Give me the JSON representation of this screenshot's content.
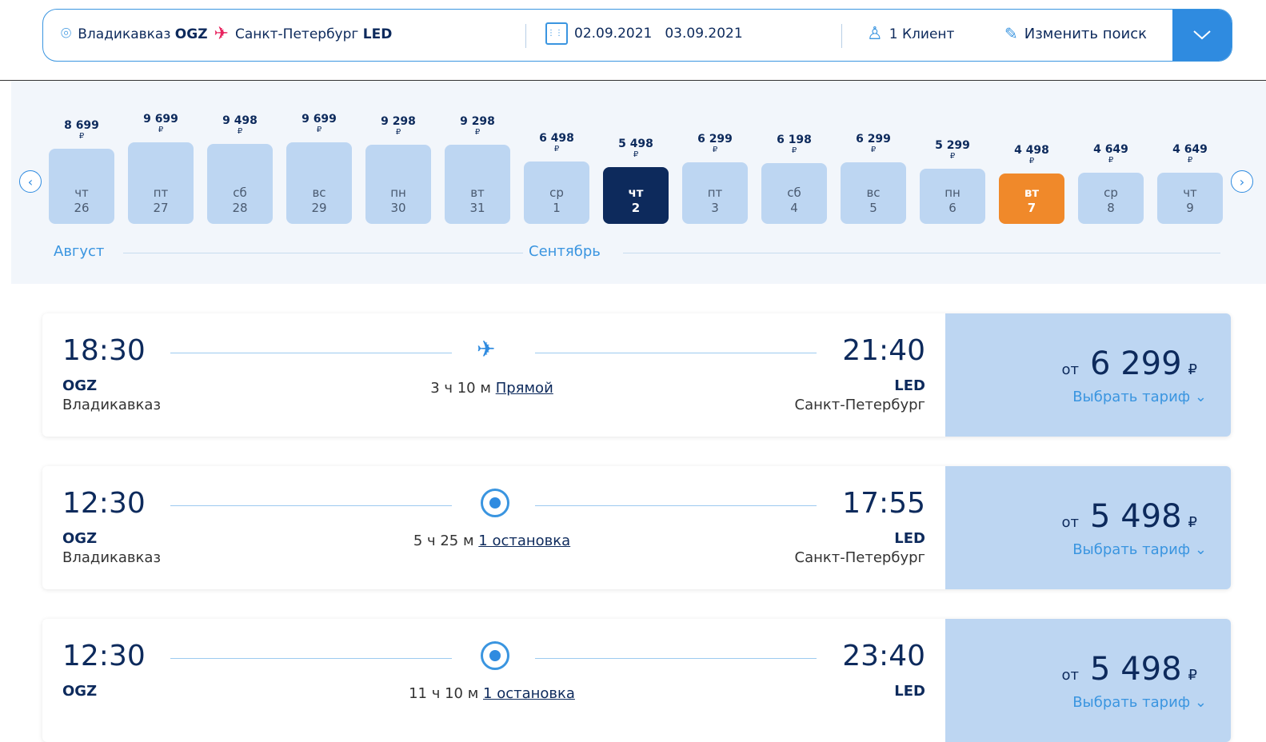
{
  "search": {
    "from_city": "Владикавказ",
    "from_code": "OGZ",
    "to_city": "Санкт-Петербург",
    "to_code": "LED",
    "date_out": "02.09.2021",
    "date_back": "03.09.2021",
    "passengers": "1 Клиент",
    "edit_label": "Изменить поиск"
  },
  "calendar": {
    "months": [
      "Август",
      "Сентябрь"
    ],
    "currency": "₽",
    "days": [
      {
        "dow": "чт",
        "day": "26",
        "price": "8 699",
        "value": 8699
      },
      {
        "dow": "пт",
        "day": "27",
        "price": "9 699",
        "value": 9699
      },
      {
        "dow": "сб",
        "day": "28",
        "price": "9 498",
        "value": 9498
      },
      {
        "dow": "вс",
        "day": "29",
        "price": "9 699",
        "value": 9699
      },
      {
        "dow": "пн",
        "day": "30",
        "price": "9 298",
        "value": 9298
      },
      {
        "dow": "вт",
        "day": "31",
        "price": "9 298",
        "value": 9298
      },
      {
        "dow": "ср",
        "day": "1",
        "price": "6 498",
        "value": 6498
      },
      {
        "dow": "чт",
        "day": "2",
        "price": "5 498",
        "value": 5498,
        "state": "selected"
      },
      {
        "dow": "пт",
        "day": "3",
        "price": "6 299",
        "value": 6299
      },
      {
        "dow": "сб",
        "day": "4",
        "price": "6 198",
        "value": 6198
      },
      {
        "dow": "вс",
        "day": "5",
        "price": "6 299",
        "value": 6299
      },
      {
        "dow": "пн",
        "day": "6",
        "price": "5 299",
        "value": 5299
      },
      {
        "dow": "вт",
        "day": "7",
        "price": "4 498",
        "value": 4498,
        "state": "cheapest"
      },
      {
        "dow": "ср",
        "day": "8",
        "price": "4 649",
        "value": 4649
      },
      {
        "dow": "чт",
        "day": "9",
        "price": "4 649",
        "value": 4649
      }
    ],
    "colors": {
      "selected": "#0d2a5c",
      "cheapest": "#f0892a",
      "default": "#bdd6f2"
    }
  },
  "flights": [
    {
      "dep": "18:30",
      "arr": "21:40",
      "from_code": "OGZ",
      "from_city": "Владикавказ",
      "to_code": "LED",
      "to_city": "Санкт-Петербург",
      "duration": "3 ч 10 м",
      "type": "Прямой",
      "icon": "plane-icon",
      "from": "от",
      "price": "6 299",
      "currency": "₽",
      "select": "Выбрать тариф"
    },
    {
      "dep": "12:30",
      "arr": "17:55",
      "from_code": "OGZ",
      "from_city": "Владикавказ",
      "to_code": "LED",
      "to_city": "Санкт-Петербург",
      "duration": "5 ч 25 м",
      "type": "1 остановка",
      "icon": "stop-icon",
      "from": "от",
      "price": "5 498",
      "currency": "₽",
      "select": "Выбрать тариф"
    },
    {
      "dep": "12:30",
      "arr": "23:40",
      "from_code": "OGZ",
      "from_city": "",
      "to_code": "LED",
      "to_city": "",
      "duration": "11 ч 10 м",
      "type": "1 остановка",
      "icon": "stop-icon",
      "from": "от",
      "price": "5 498",
      "currency": "₽",
      "select": "Выбрать тариф"
    }
  ]
}
